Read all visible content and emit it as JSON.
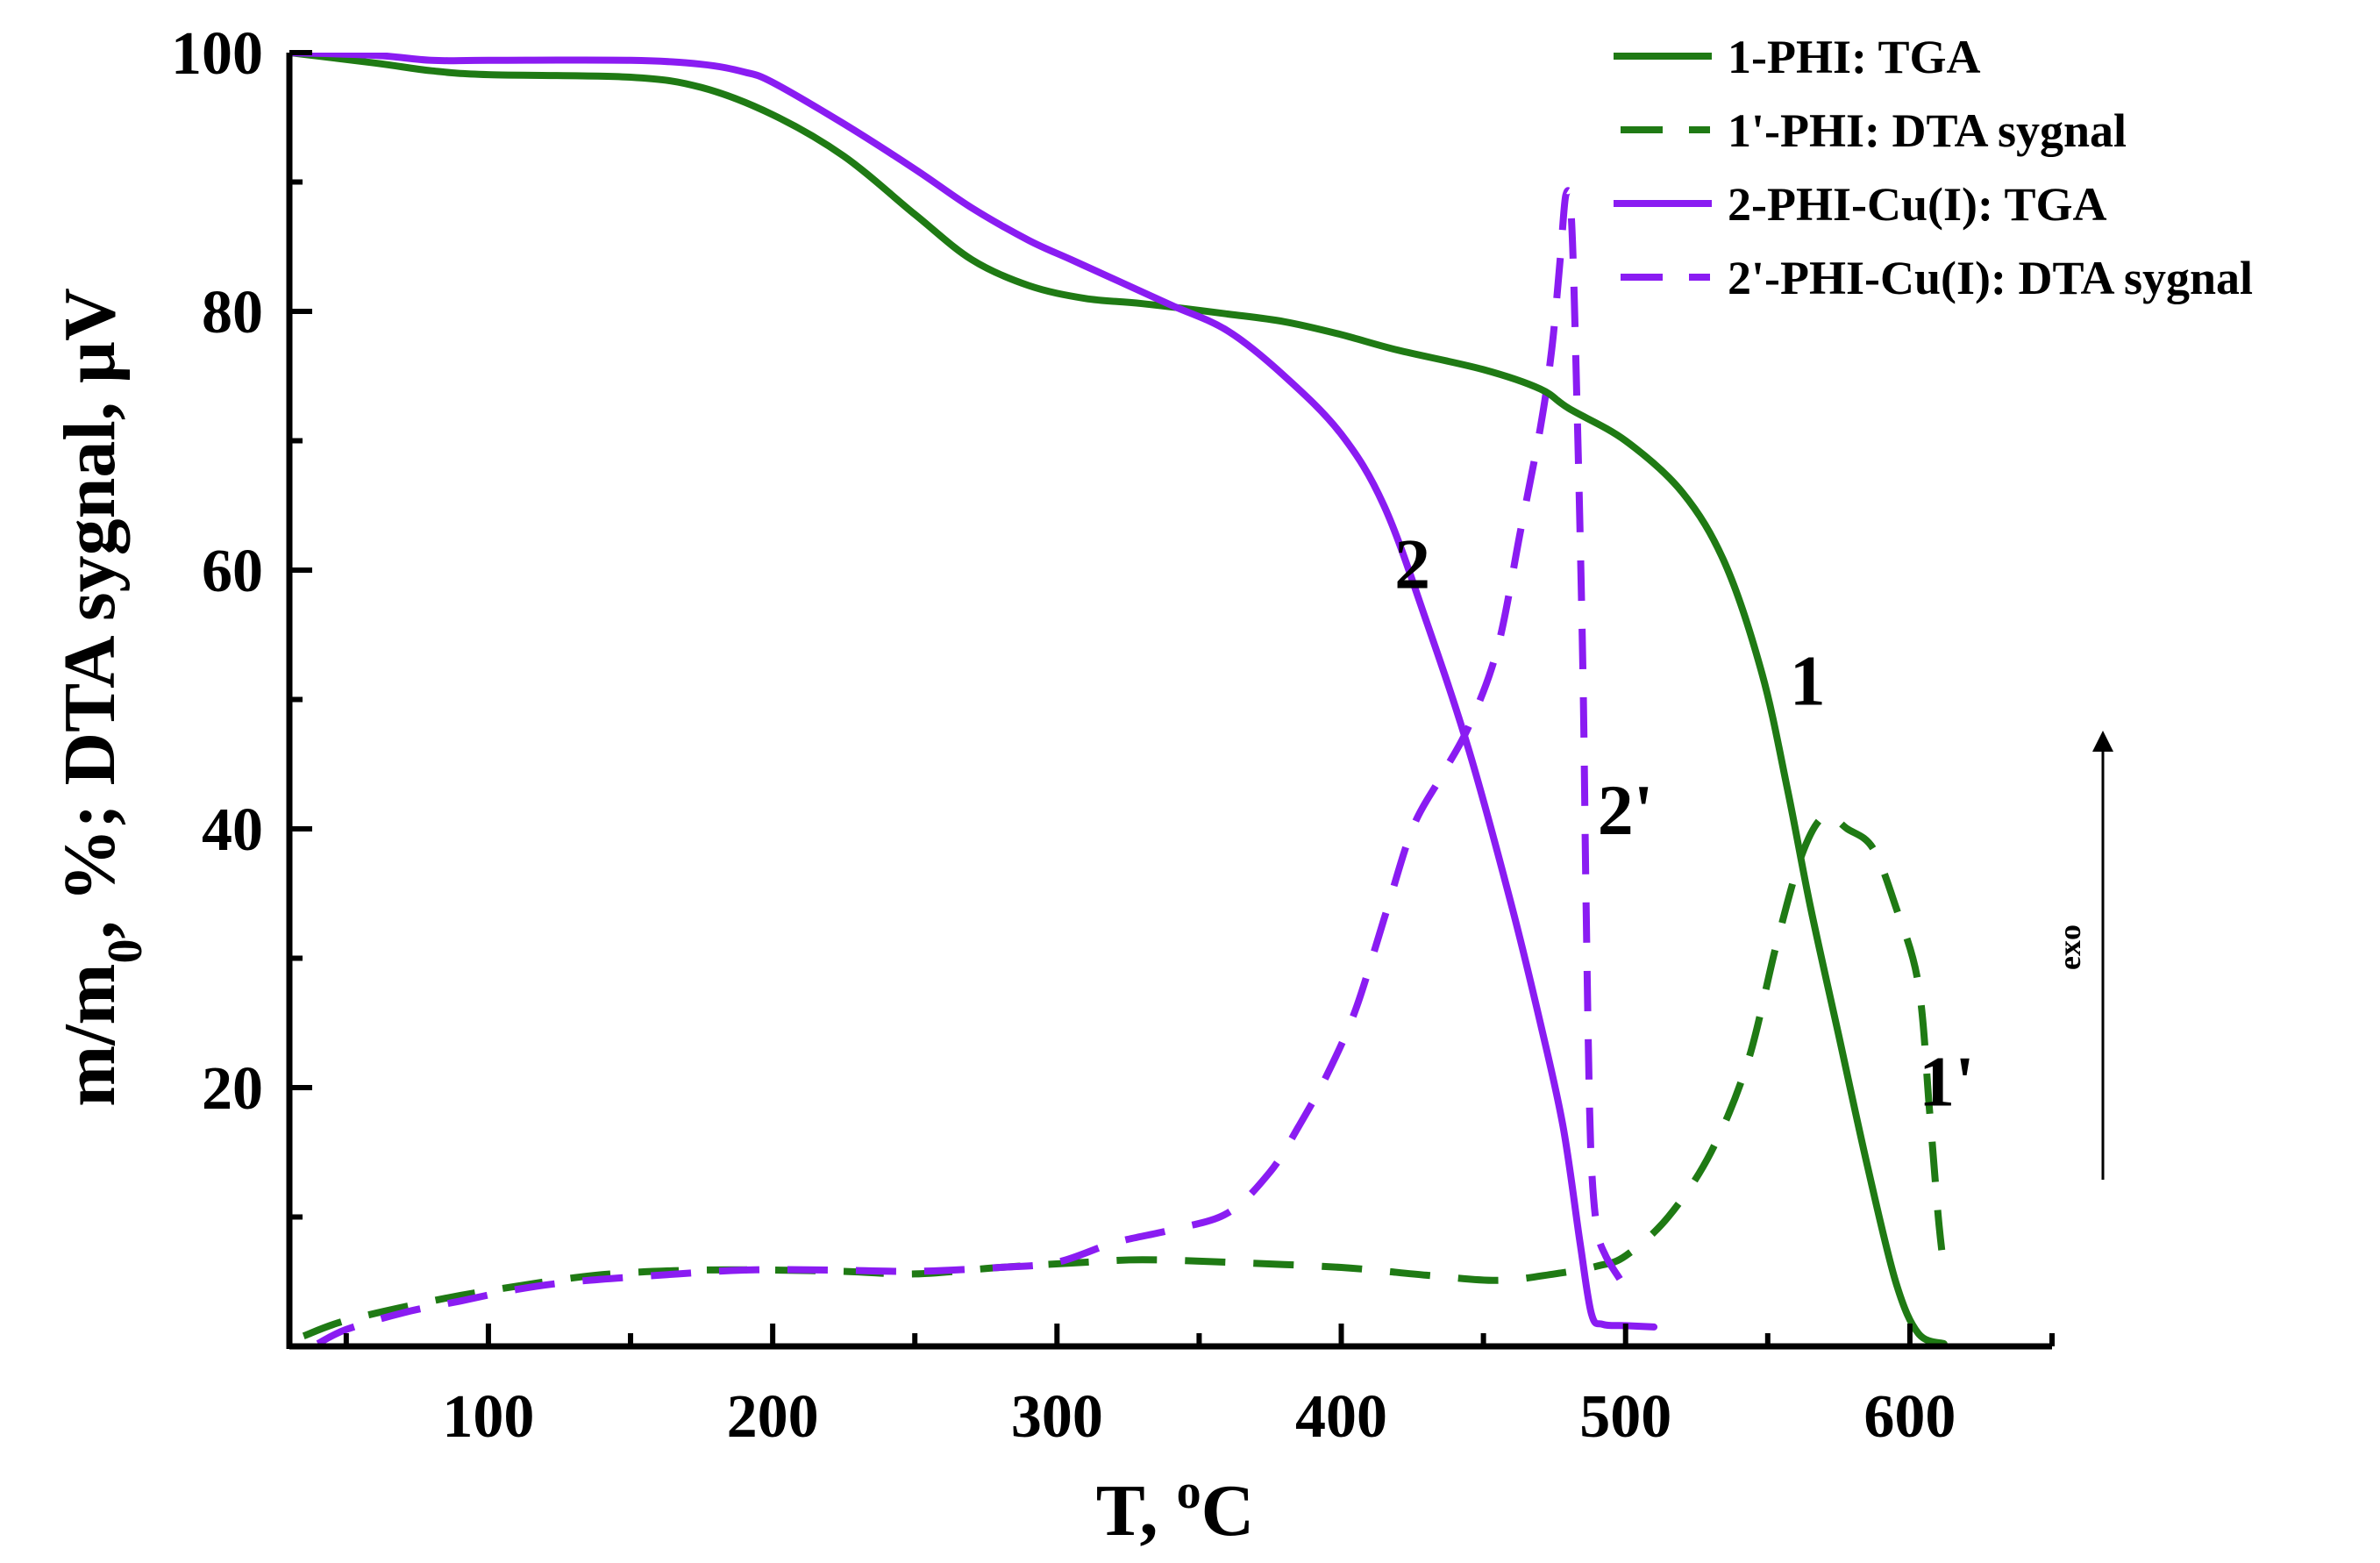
{
  "chart_data": {
    "type": "line",
    "title": "",
    "xlabel": "T, °C",
    "xlabel_parts": {
      "main": "T, ",
      "sup": "o",
      "tail": "C"
    },
    "ylabel": "m/m0, %; DTA sygnal, µV",
    "ylabel_parts": {
      "main": "m/m",
      "sub": "0",
      "tail": ", %; DTA sygnal, µV"
    },
    "xlim": [
      30,
      650
    ],
    "ylim": [
      0,
      100
    ],
    "x_ticks": [
      100,
      200,
      300,
      400,
      500,
      600
    ],
    "x_tick_labels": [
      "100",
      "200",
      "300",
      "400",
      "500",
      "600"
    ],
    "y_ticks": [
      20,
      40,
      60,
      80,
      100
    ],
    "y_tick_labels": [
      "20",
      "40",
      "60",
      "80",
      "100"
    ],
    "grid": false,
    "legend_position": "top-right",
    "colors": {
      "green": "#1f7a14",
      "purple": "#8a1cf2",
      "axis": "#000000"
    },
    "series": [
      {
        "name": "1-PHI: TGA",
        "label": "1",
        "color": "#1f7a14",
        "style": "solid",
        "points": [
          [
            30,
            100
          ],
          [
            60,
            99.2
          ],
          [
            80,
            98.6
          ],
          [
            100,
            98.3
          ],
          [
            150,
            98.1
          ],
          [
            175,
            97.3
          ],
          [
            200,
            95.2
          ],
          [
            225,
            92
          ],
          [
            250,
            87.5
          ],
          [
            270,
            84
          ],
          [
            290,
            82
          ],
          [
            310,
            81
          ],
          [
            330,
            80.6
          ],
          [
            360,
            79.8
          ],
          [
            380,
            79.2
          ],
          [
            400,
            78.2
          ],
          [
            420,
            77
          ],
          [
            450,
            75.5
          ],
          [
            470,
            74
          ],
          [
            480,
            72.5
          ],
          [
            500,
            70
          ],
          [
            520,
            66
          ],
          [
            535,
            60.5
          ],
          [
            548,
            52
          ],
          [
            557,
            43
          ],
          [
            565,
            34
          ],
          [
            575,
            24
          ],
          [
            585,
            14
          ],
          [
            595,
            5
          ],
          [
            603,
            1
          ],
          [
            612,
            0.2
          ]
        ]
      },
      {
        "name": "1'-PHI: DTA sygnal",
        "label": "1'",
        "color": "#1f7a14",
        "style": "dash",
        "points": [
          [
            35,
            0.8
          ],
          [
            50,
            2
          ],
          [
            80,
            3.5
          ],
          [
            100,
            4.3
          ],
          [
            130,
            5.3
          ],
          [
            150,
            5.7
          ],
          [
            175,
            5.9
          ],
          [
            200,
            5.9
          ],
          [
            225,
            5.8
          ],
          [
            250,
            5.6
          ],
          [
            280,
            6.1
          ],
          [
            310,
            6.5
          ],
          [
            330,
            6.7
          ],
          [
            360,
            6.5
          ],
          [
            400,
            6.1
          ],
          [
            430,
            5.5
          ],
          [
            455,
            5.1
          ],
          [
            475,
            5.6
          ],
          [
            490,
            6.2
          ],
          [
            500,
            7
          ],
          [
            515,
            10
          ],
          [
            530,
            15
          ],
          [
            543,
            22
          ],
          [
            553,
            31
          ],
          [
            562,
            38
          ],
          [
            570,
            41
          ],
          [
            578,
            40
          ],
          [
            587,
            38.5
          ],
          [
            595,
            34
          ],
          [
            603,
            28
          ],
          [
            607,
            18
          ],
          [
            610,
            10
          ],
          [
            612,
            6
          ]
        ]
      },
      {
        "name": "2-PHI-Cu(I): TGA",
        "label": "2",
        "color": "#8a1cf2",
        "style": "solid",
        "points": [
          [
            30,
            100
          ],
          [
            60,
            99.8
          ],
          [
            80,
            99.4
          ],
          [
            100,
            99.4
          ],
          [
            150,
            99.4
          ],
          [
            175,
            99.1
          ],
          [
            190,
            98.5
          ],
          [
            200,
            97.7
          ],
          [
            225,
            94.5
          ],
          [
            250,
            91
          ],
          [
            270,
            88
          ],
          [
            290,
            85.5
          ],
          [
            305,
            84
          ],
          [
            320,
            82.5
          ],
          [
            340,
            80.5
          ],
          [
            360,
            78.5
          ],
          [
            380,
            75
          ],
          [
            400,
            70.5
          ],
          [
            415,
            65
          ],
          [
            430,
            56
          ],
          [
            445,
            46
          ],
          [
            460,
            34
          ],
          [
            470,
            25
          ],
          [
            478,
            17
          ],
          [
            484,
            8
          ],
          [
            488,
            2.5
          ],
          [
            492,
            1.7
          ],
          [
            500,
            1.6
          ],
          [
            510,
            1.5
          ]
        ]
      },
      {
        "name": "2'-PHI-Cu(I): DTA sygnal",
        "label": "2'",
        "color": "#8a1cf2",
        "style": "dash",
        "points": [
          [
            40,
            0.2
          ],
          [
            50,
            1.3
          ],
          [
            70,
            2.6
          ],
          [
            90,
            3.5
          ],
          [
            110,
            4.4
          ],
          [
            130,
            5
          ],
          [
            160,
            5.5
          ],
          [
            190,
            5.9
          ],
          [
            220,
            5.9
          ],
          [
            250,
            5.8
          ],
          [
            280,
            6.1
          ],
          [
            300,
            6.5
          ],
          [
            320,
            8
          ],
          [
            340,
            9
          ],
          [
            360,
            10.3
          ],
          [
            375,
            13.5
          ],
          [
            385,
            17
          ],
          [
            395,
            21
          ],
          [
            405,
            26
          ],
          [
            415,
            33
          ],
          [
            425,
            40
          ],
          [
            435,
            44
          ],
          [
            445,
            48
          ],
          [
            455,
            54
          ],
          [
            463,
            63
          ],
          [
            470,
            71
          ],
          [
            474,
            77
          ],
          [
            477,
            84
          ],
          [
            479,
            89
          ],
          [
            481,
            87
          ],
          [
            483,
            72
          ],
          [
            485,
            52
          ],
          [
            486,
            36
          ],
          [
            487,
            22
          ],
          [
            488,
            14
          ],
          [
            490,
            9
          ],
          [
            493,
            7
          ],
          [
            498,
            5.2
          ]
        ]
      }
    ],
    "annotations": [
      {
        "text": "2",
        "x": 425,
        "y": 60.5
      },
      {
        "text": "1",
        "x": 564,
        "y": 51.5
      },
      {
        "text": "2'",
        "x": 500,
        "y": 41.5
      },
      {
        "text": "1'",
        "x": 613,
        "y": 20.5
      }
    ],
    "exo_label": "exo"
  }
}
